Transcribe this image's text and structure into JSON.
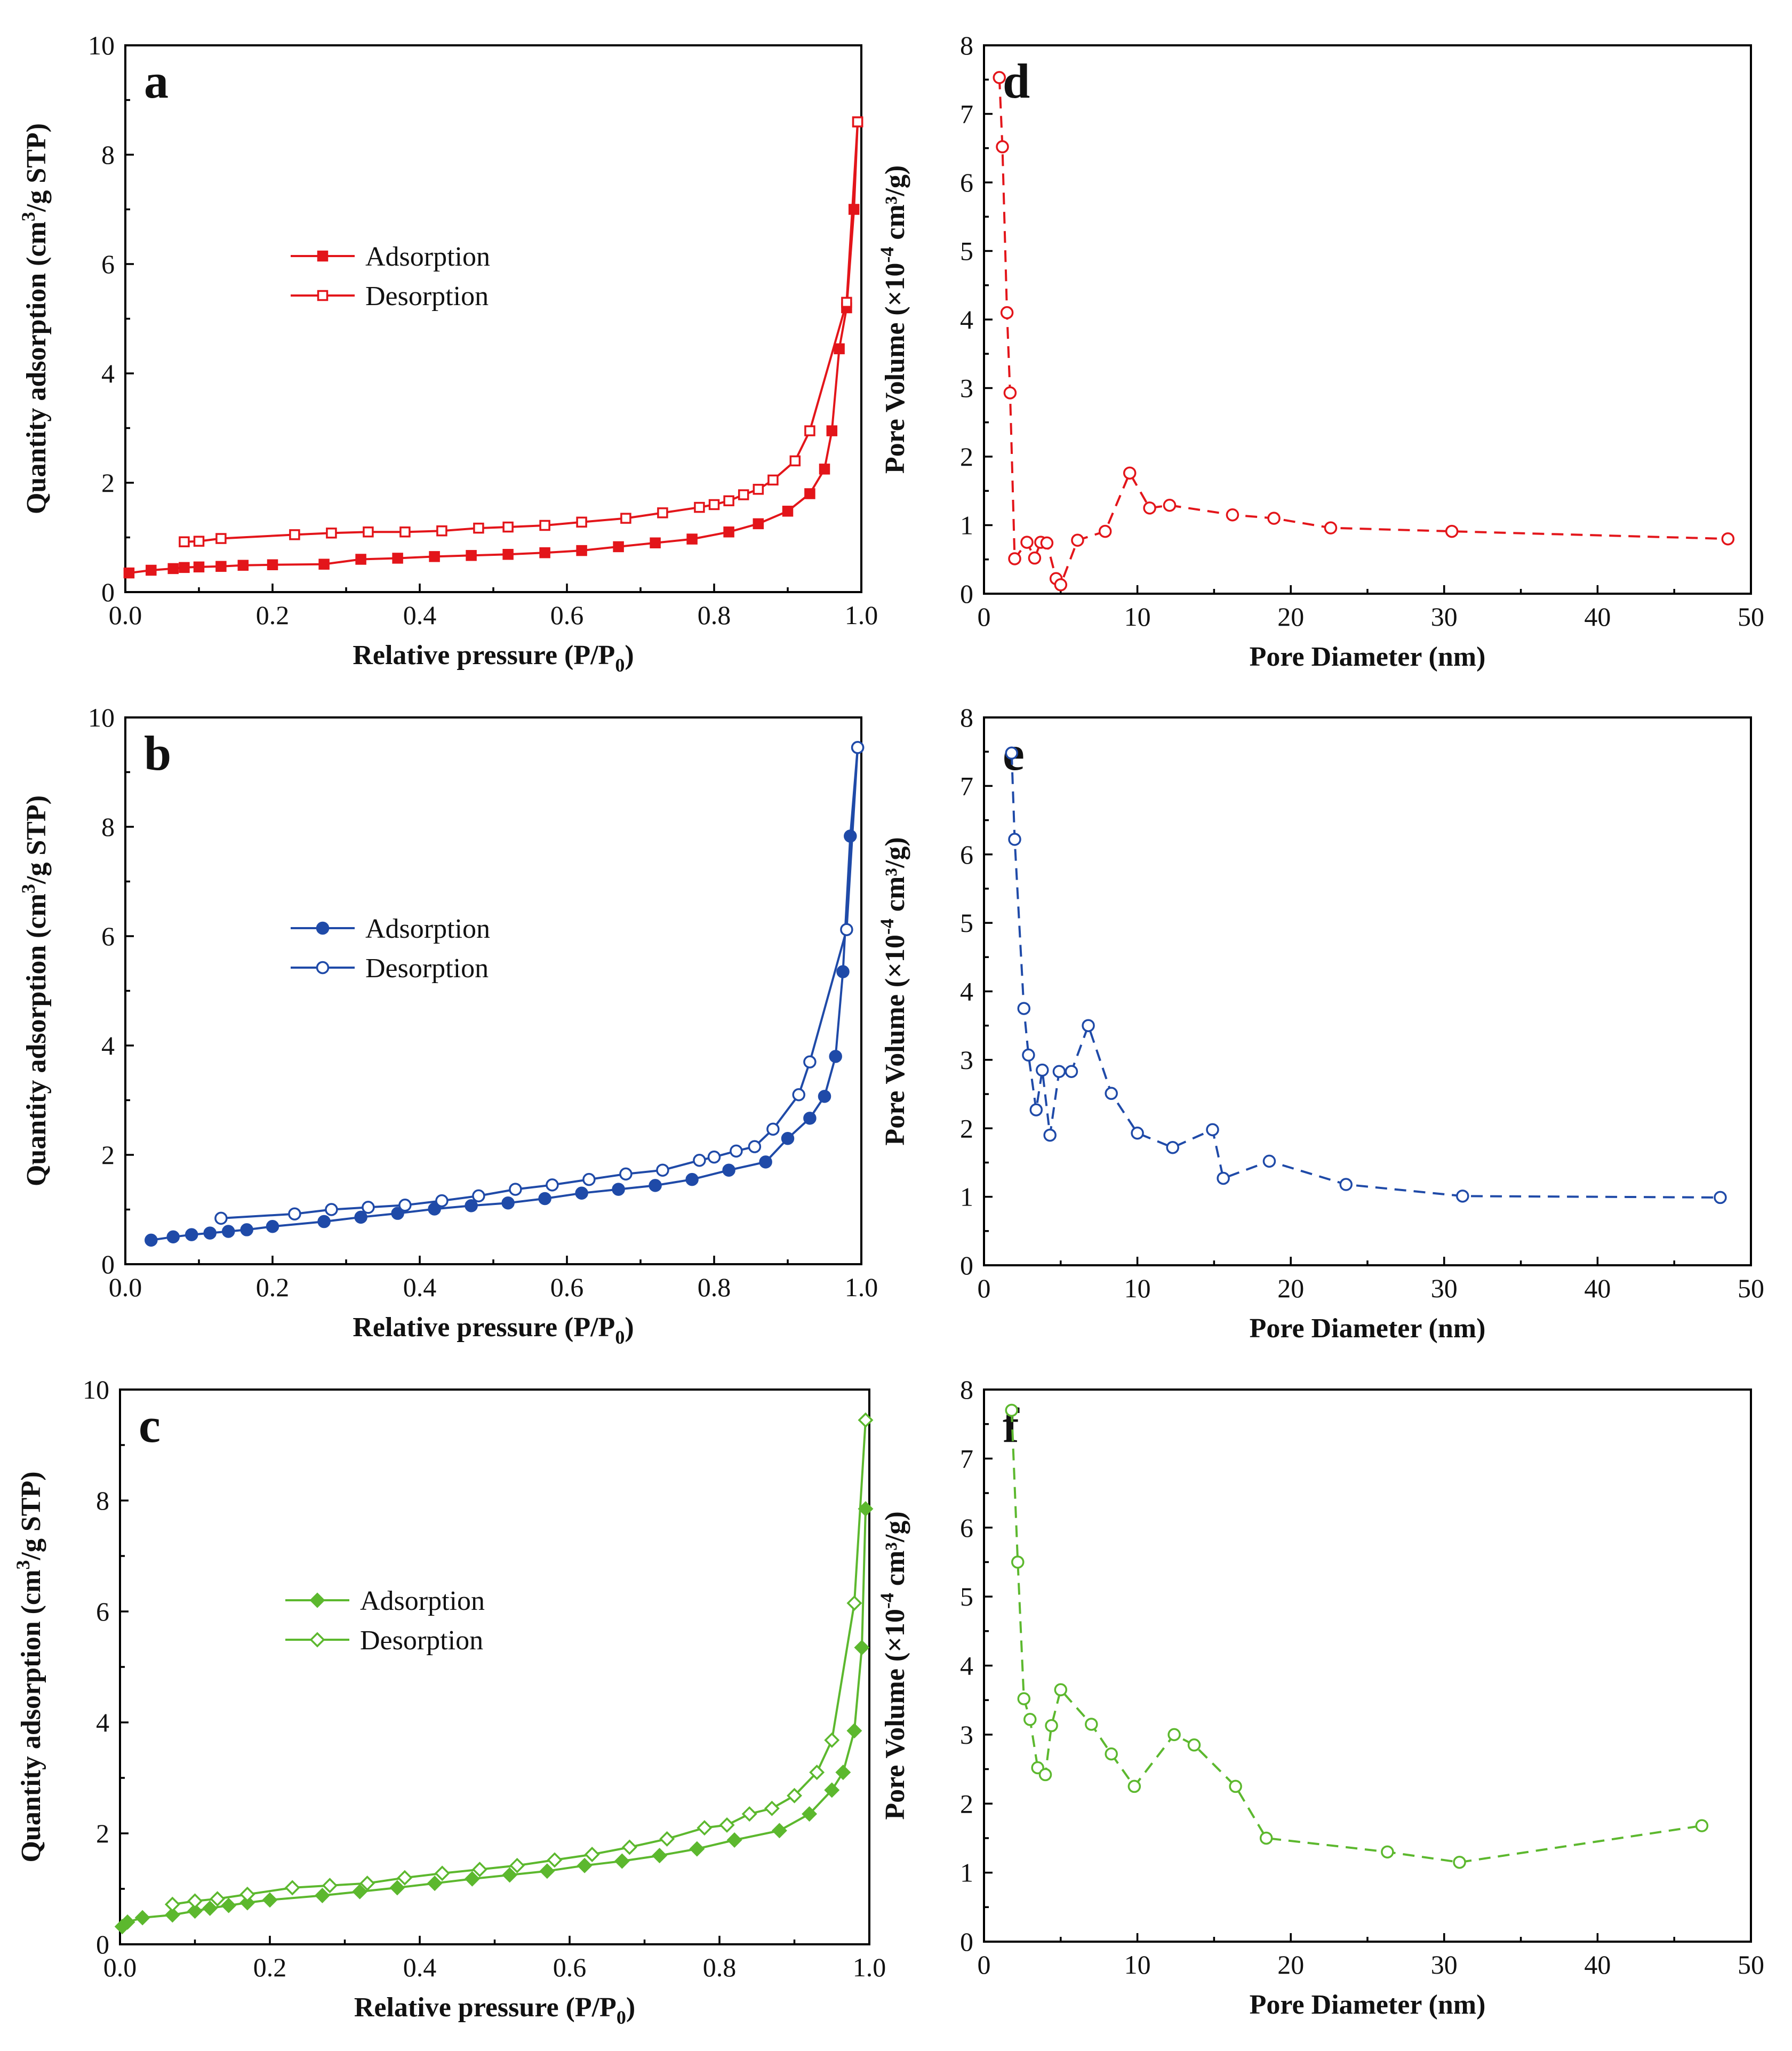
{
  "figure": {
    "panel_count": 6
  },
  "colors": {
    "a": "#e3151a",
    "b": "#1f4aa8",
    "c": "#5cb82e",
    "axis": "#000000"
  },
  "chart_data": [
    {
      "id": "a",
      "letter": "a",
      "type": "line",
      "color_key": "a",
      "xlabel": "Relative pressure (P/P",
      "xlabel_sub": "0",
      "xlabel_end": ")",
      "ylabel_pre": "Quantity adsorption (cm",
      "ylabel_sup": "3",
      "ylabel_post": "/g STP)",
      "xlim": [
        0,
        1
      ],
      "ylim": [
        0,
        10
      ],
      "xticks": [
        0,
        0.2,
        0.4,
        0.6,
        0.8,
        1.0
      ],
      "xtick_labels": [
        "0.0",
        "0.2",
        "0.4",
        "0.6",
        "0.8",
        "1.0"
      ],
      "yticks": [
        0,
        2,
        4,
        6,
        8,
        10
      ],
      "ytick_labels": [
        "0",
        "2",
        "4",
        "6",
        "8",
        "10"
      ],
      "legend_position": "center-left",
      "series": [
        {
          "name": "Adsorption",
          "marker": "square",
          "filled": true,
          "dash": false,
          "x": [
            0.005,
            0.035,
            0.065,
            0.08,
            0.1,
            0.13,
            0.16,
            0.2,
            0.27,
            0.32,
            0.37,
            0.42,
            0.47,
            0.52,
            0.57,
            0.62,
            0.67,
            0.72,
            0.77,
            0.82,
            0.86,
            0.9,
            0.93,
            0.95,
            0.96,
            0.97,
            0.98,
            0.99,
            0.995
          ],
          "y": [
            0.35,
            0.4,
            0.43,
            0.45,
            0.46,
            0.47,
            0.49,
            0.5,
            0.51,
            0.6,
            0.62,
            0.65,
            0.67,
            0.69,
            0.72,
            0.76,
            0.83,
            0.9,
            0.97,
            1.1,
            1.25,
            1.48,
            1.8,
            2.25,
            2.95,
            4.45,
            5.2,
            7.0,
            8.6
          ]
        },
        {
          "name": "Desorption",
          "marker": "square",
          "filled": false,
          "dash": false,
          "x": [
            0.995,
            0.98,
            0.93,
            0.91,
            0.88,
            0.86,
            0.84,
            0.82,
            0.8,
            0.78,
            0.73,
            0.68,
            0.62,
            0.57,
            0.52,
            0.48,
            0.43,
            0.38,
            0.33,
            0.28,
            0.23,
            0.13,
            0.1,
            0.08
          ],
          "y": [
            8.6,
            5.3,
            2.95,
            2.4,
            2.05,
            1.88,
            1.78,
            1.67,
            1.6,
            1.55,
            1.45,
            1.35,
            1.28,
            1.22,
            1.19,
            1.17,
            1.12,
            1.1,
            1.1,
            1.08,
            1.05,
            0.98,
            0.93,
            0.92
          ]
        }
      ]
    },
    {
      "id": "b",
      "letter": "b",
      "type": "line",
      "color_key": "b",
      "xlabel": "Relative pressure (P/P",
      "xlabel_sub": "0",
      "xlabel_end": ")",
      "ylabel_pre": "Quantity adsorption (cm",
      "ylabel_sup": "3",
      "ylabel_post": "/g STP)",
      "xlim": [
        0,
        1
      ],
      "ylim": [
        0,
        10
      ],
      "xticks": [
        0,
        0.2,
        0.4,
        0.6,
        0.8,
        1.0
      ],
      "xtick_labels": [
        "0.0",
        "0.2",
        "0.4",
        "0.6",
        "0.8",
        "1.0"
      ],
      "yticks": [
        0,
        2,
        4,
        6,
        8,
        10
      ],
      "ytick_labels": [
        "0",
        "2",
        "4",
        "6",
        "8",
        "10"
      ],
      "legend_position": "center-left",
      "series": [
        {
          "name": "Adsorption",
          "marker": "circle",
          "filled": true,
          "dash": false,
          "x": [
            0.035,
            0.065,
            0.09,
            0.115,
            0.14,
            0.165,
            0.2,
            0.27,
            0.32,
            0.37,
            0.42,
            0.47,
            0.52,
            0.57,
            0.62,
            0.67,
            0.72,
            0.77,
            0.82,
            0.87,
            0.9,
            0.93,
            0.95,
            0.965,
            0.975,
            0.985,
            0.995
          ],
          "y": [
            0.44,
            0.5,
            0.54,
            0.57,
            0.6,
            0.63,
            0.69,
            0.78,
            0.86,
            0.93,
            1.01,
            1.07,
            1.12,
            1.2,
            1.3,
            1.37,
            1.44,
            1.55,
            1.72,
            1.87,
            2.3,
            2.67,
            3.07,
            3.8,
            5.35,
            7.83,
            9.45
          ]
        },
        {
          "name": "Desorption",
          "marker": "circle",
          "filled": false,
          "dash": false,
          "x": [
            0.995,
            0.98,
            0.93,
            0.915,
            0.88,
            0.855,
            0.83,
            0.8,
            0.78,
            0.73,
            0.68,
            0.63,
            0.58,
            0.53,
            0.48,
            0.43,
            0.38,
            0.33,
            0.28,
            0.23,
            0.13
          ],
          "y": [
            9.45,
            6.12,
            3.7,
            3.1,
            2.47,
            2.15,
            2.07,
            1.96,
            1.9,
            1.72,
            1.65,
            1.55,
            1.45,
            1.37,
            1.25,
            1.16,
            1.08,
            1.04,
            1.0,
            0.92,
            0.84
          ]
        }
      ]
    },
    {
      "id": "c",
      "letter": "c",
      "type": "line",
      "color_key": "c",
      "xlabel": "Relative pressure (P/P",
      "xlabel_sub": "0",
      "xlabel_end": ")",
      "ylabel_pre": "Quantity adsorption (cm",
      "ylabel_sup": "3",
      "ylabel_post": "/g STP)",
      "xlim": [
        0,
        1
      ],
      "ylim": [
        0,
        10
      ],
      "xticks": [
        0,
        0.2,
        0.4,
        0.6,
        0.8,
        1.0
      ],
      "xtick_labels": [
        "0.0",
        "0.2",
        "0.4",
        "0.6",
        "0.8",
        "1.0"
      ],
      "yticks": [
        0,
        2,
        4,
        6,
        8,
        10
      ],
      "ytick_labels": [
        "0",
        "2",
        "4",
        "6",
        "8",
        "10"
      ],
      "legend_position": "center-left",
      "series": [
        {
          "name": "Adsorption",
          "marker": "diamond",
          "filled": true,
          "dash": false,
          "x": [
            0.003,
            0.01,
            0.03,
            0.07,
            0.1,
            0.12,
            0.145,
            0.17,
            0.2,
            0.27,
            0.32,
            0.37,
            0.42,
            0.47,
            0.52,
            0.57,
            0.62,
            0.67,
            0.72,
            0.77,
            0.82,
            0.88,
            0.92,
            0.95,
            0.965,
            0.98,
            0.99,
            0.995
          ],
          "y": [
            0.32,
            0.4,
            0.48,
            0.53,
            0.6,
            0.65,
            0.7,
            0.75,
            0.8,
            0.88,
            0.95,
            1.02,
            1.1,
            1.18,
            1.25,
            1.32,
            1.42,
            1.5,
            1.6,
            1.72,
            1.88,
            2.05,
            2.35,
            2.78,
            3.1,
            3.85,
            5.35,
            7.85
          ]
        },
        {
          "name": "Desorption",
          "marker": "diamond",
          "filled": false,
          "dash": false,
          "x": [
            0.995,
            0.98,
            0.95,
            0.93,
            0.9,
            0.87,
            0.84,
            0.81,
            0.78,
            0.73,
            0.68,
            0.63,
            0.58,
            0.53,
            0.48,
            0.43,
            0.38,
            0.33,
            0.28,
            0.23,
            0.17,
            0.13,
            0.1,
            0.07
          ],
          "y": [
            9.45,
            6.15,
            3.68,
            3.1,
            2.68,
            2.45,
            2.35,
            2.15,
            2.1,
            1.9,
            1.75,
            1.62,
            1.52,
            1.42,
            1.35,
            1.28,
            1.2,
            1.1,
            1.06,
            1.02,
            0.9,
            0.82,
            0.78,
            0.72
          ]
        }
      ]
    },
    {
      "id": "d",
      "letter": "d",
      "type": "line",
      "color_key": "a",
      "xlabel": "Pore Diameter (nm)",
      "xlabel_sub": "",
      "xlabel_end": "",
      "ylabel_pre": "Pore Volume (×10",
      "ylabel_sup": "-4",
      "ylabel_post": " cm³/g)",
      "xlim": [
        0,
        50
      ],
      "ylim": [
        0,
        8
      ],
      "xticks": [
        0,
        10,
        20,
        30,
        40,
        50
      ],
      "xtick_labels": [
        "0",
        "10",
        "20",
        "30",
        "40",
        "50"
      ],
      "yticks": [
        0,
        1,
        2,
        3,
        4,
        5,
        6,
        7,
        8
      ],
      "ytick_labels": [
        "0",
        "1",
        "2",
        "3",
        "4",
        "5",
        "6",
        "7",
        "8"
      ],
      "legend_position": "none",
      "series": [
        {
          "name": "Pore volume",
          "marker": "circle",
          "filled": false,
          "dash": true,
          "x": [
            1.0,
            1.2,
            1.5,
            1.7,
            2.0,
            2.8,
            3.3,
            3.7,
            4.1,
            4.7,
            5.0,
            6.1,
            7.9,
            9.5,
            10.8,
            12.1,
            16.2,
            18.9,
            22.6,
            30.5,
            48.5
          ],
          "y": [
            7.53,
            6.52,
            4.1,
            2.93,
            0.51,
            0.75,
            0.52,
            0.75,
            0.74,
            0.22,
            0.13,
            0.78,
            0.91,
            1.76,
            1.25,
            1.29,
            1.15,
            1.1,
            0.96,
            0.91,
            0.8
          ]
        }
      ]
    },
    {
      "id": "e",
      "letter": "e",
      "type": "line",
      "color_key": "b",
      "xlabel": "Pore Diameter (nm)",
      "xlabel_sub": "",
      "xlabel_end": "",
      "ylabel_pre": "Pore Volume (×10",
      "ylabel_sup": "-4",
      "ylabel_post": " cm³/g)",
      "xlim": [
        0,
        50
      ],
      "ylim": [
        0,
        8
      ],
      "xticks": [
        0,
        10,
        20,
        30,
        40,
        50
      ],
      "xtick_labels": [
        "0",
        "10",
        "20",
        "30",
        "40",
        "50"
      ],
      "yticks": [
        0,
        1,
        2,
        3,
        4,
        5,
        6,
        7,
        8
      ],
      "ytick_labels": [
        "0",
        "1",
        "2",
        "3",
        "4",
        "5",
        "6",
        "7",
        "8"
      ],
      "legend_position": "none",
      "series": [
        {
          "name": "Pore volume",
          "marker": "circle",
          "filled": false,
          "dash": true,
          "x": [
            1.8,
            2.0,
            2.6,
            2.9,
            3.4,
            3.8,
            4.3,
            4.9,
            5.7,
            6.8,
            8.3,
            10.0,
            12.3,
            14.9,
            15.6,
            18.6,
            23.6,
            31.2,
            48.0
          ],
          "y": [
            7.48,
            6.22,
            3.75,
            3.07,
            2.27,
            2.85,
            1.9,
            2.83,
            2.83,
            3.5,
            2.51,
            1.93,
            1.72,
            1.98,
            1.27,
            1.52,
            1.18,
            1.01,
            0.99
          ]
        }
      ]
    },
    {
      "id": "f",
      "letter": "f",
      "type": "line",
      "color_key": "c",
      "xlabel": "Pore Diameter (nm)",
      "xlabel_sub": "",
      "xlabel_end": "",
      "ylabel_pre": "Pore Volume (×10",
      "ylabel_sup": "-4",
      "ylabel_post": " cm³/g)",
      "xlim": [
        0,
        50
      ],
      "ylim": [
        0,
        8
      ],
      "xticks": [
        0,
        10,
        20,
        30,
        40,
        50
      ],
      "xtick_labels": [
        "0",
        "10",
        "20",
        "30",
        "40",
        "50"
      ],
      "yticks": [
        0,
        1,
        2,
        3,
        4,
        5,
        6,
        7,
        8
      ],
      "ytick_labels": [
        "0",
        "1",
        "2",
        "3",
        "4",
        "5",
        "6",
        "7",
        "8"
      ],
      "legend_position": "none",
      "series": [
        {
          "name": "Pore volume",
          "marker": "circle",
          "filled": false,
          "dash": true,
          "x": [
            1.8,
            2.2,
            2.6,
            3.0,
            3.5,
            4.0,
            4.4,
            5.0,
            7.0,
            8.3,
            9.8,
            12.4,
            13.7,
            16.4,
            18.4,
            26.3,
            31.0,
            46.8
          ],
          "y": [
            7.7,
            5.5,
            3.52,
            3.22,
            2.52,
            2.42,
            3.13,
            3.65,
            3.15,
            2.72,
            2.25,
            3.0,
            2.85,
            2.25,
            1.5,
            1.3,
            1.15,
            1.68
          ]
        }
      ]
    }
  ]
}
